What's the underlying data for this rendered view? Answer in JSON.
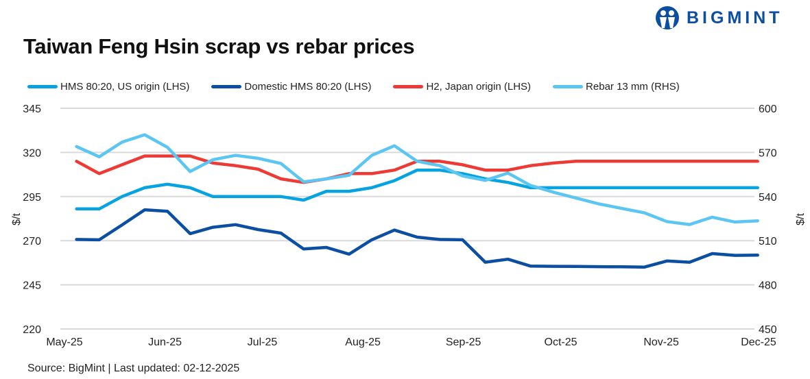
{
  "header": {
    "title": "Taiwan Feng Hsin scrap vs rebar prices",
    "logo_text": "BIGMINT"
  },
  "footer": {
    "source": "Source: BigMint |  Last updated: 02-12-2025"
  },
  "chart_data": {
    "type": "line",
    "title": "Taiwan Feng Hsin scrap vs rebar prices",
    "ylabel_left": "$/t",
    "ylabel_right": "$/t",
    "ylim_left": [
      220,
      345
    ],
    "ylim_right": [
      450,
      600
    ],
    "yticks_left": [
      "345",
      "320",
      "295",
      "270",
      "245",
      "220"
    ],
    "yticks_right": [
      "600",
      "570",
      "540",
      "510",
      "480",
      "450"
    ],
    "xticks": [
      "May-25",
      "Jun-25",
      "Jul-25",
      "Aug-25",
      "Sep-25",
      "Oct-25",
      "Nov-25",
      "Dec-25"
    ],
    "xtick_dates": [
      "2025-05-01",
      "2025-06-01",
      "2025-07-01",
      "2025-08-01",
      "2025-09-01",
      "2025-10-01",
      "2025-11-01",
      "2025-12-01"
    ],
    "grid": true,
    "legend_position": "top",
    "x": [
      "2025-05-06",
      "2025-05-13",
      "2025-05-20",
      "2025-05-27",
      "2025-06-03",
      "2025-06-10",
      "2025-06-17",
      "2025-06-24",
      "2025-07-01",
      "2025-07-08",
      "2025-07-15",
      "2025-07-22",
      "2025-07-29",
      "2025-08-05",
      "2025-08-12",
      "2025-08-19",
      "2025-08-26",
      "2025-09-02",
      "2025-09-09",
      "2025-09-16",
      "2025-09-23",
      "2025-09-30",
      "2025-10-07",
      "2025-10-14",
      "2025-10-21",
      "2025-10-28",
      "2025-11-04",
      "2025-11-11",
      "2025-11-18",
      "2025-11-25",
      "2025-12-02"
    ],
    "series": [
      {
        "name": "HMS 80:20, US origin (LHS)",
        "axis": "left",
        "color": "#05a3e0",
        "values": [
          288,
          288,
          295,
          300,
          302,
          300,
          295,
          295,
          295,
          295,
          293,
          298,
          298,
          300,
          304,
          310,
          310,
          308,
          305,
          303,
          300,
          300,
          300,
          300,
          300,
          300,
          300,
          300,
          300,
          300,
          300
        ]
      },
      {
        "name": "Domestic HMS 80:20 (LHS)",
        "axis": "left",
        "color": "#0b4ea2",
        "values": [
          270.7,
          270.5,
          278.9,
          287.5,
          286.7,
          274,
          277.6,
          279.1,
          276.3,
          274.3,
          265.3,
          266.2,
          262.4,
          270.5,
          276,
          272,
          270.7,
          270.5,
          257.8,
          259.5,
          255.6,
          255.5,
          255.4,
          255.3,
          255.2,
          255,
          258.5,
          257.8,
          262.7,
          261.7,
          261.8
        ]
      },
      {
        "name": "H2, Japan origin (LHS)",
        "axis": "left",
        "color": "#ee3a35",
        "values": [
          315,
          308,
          313,
          318,
          318,
          318,
          314,
          312.5,
          310.5,
          305,
          303,
          305,
          308,
          308,
          310,
          315,
          315,
          313,
          310,
          310,
          312.5,
          314,
          315,
          315,
          315,
          315,
          315,
          315,
          315,
          315,
          315
        ]
      },
      {
        "name": "Rebar 13 mm (RHS)",
        "axis": "right",
        "color": "#5cc6f2",
        "values": [
          574,
          567,
          577,
          582,
          573.5,
          557,
          565,
          568,
          566,
          562.5,
          550,
          552,
          554.5,
          568,
          574.5,
          564,
          561,
          554,
          551,
          556,
          547.5,
          543,
          539,
          535,
          532,
          529,
          523,
          521,
          526,
          522.7,
          523.5
        ]
      }
    ]
  }
}
